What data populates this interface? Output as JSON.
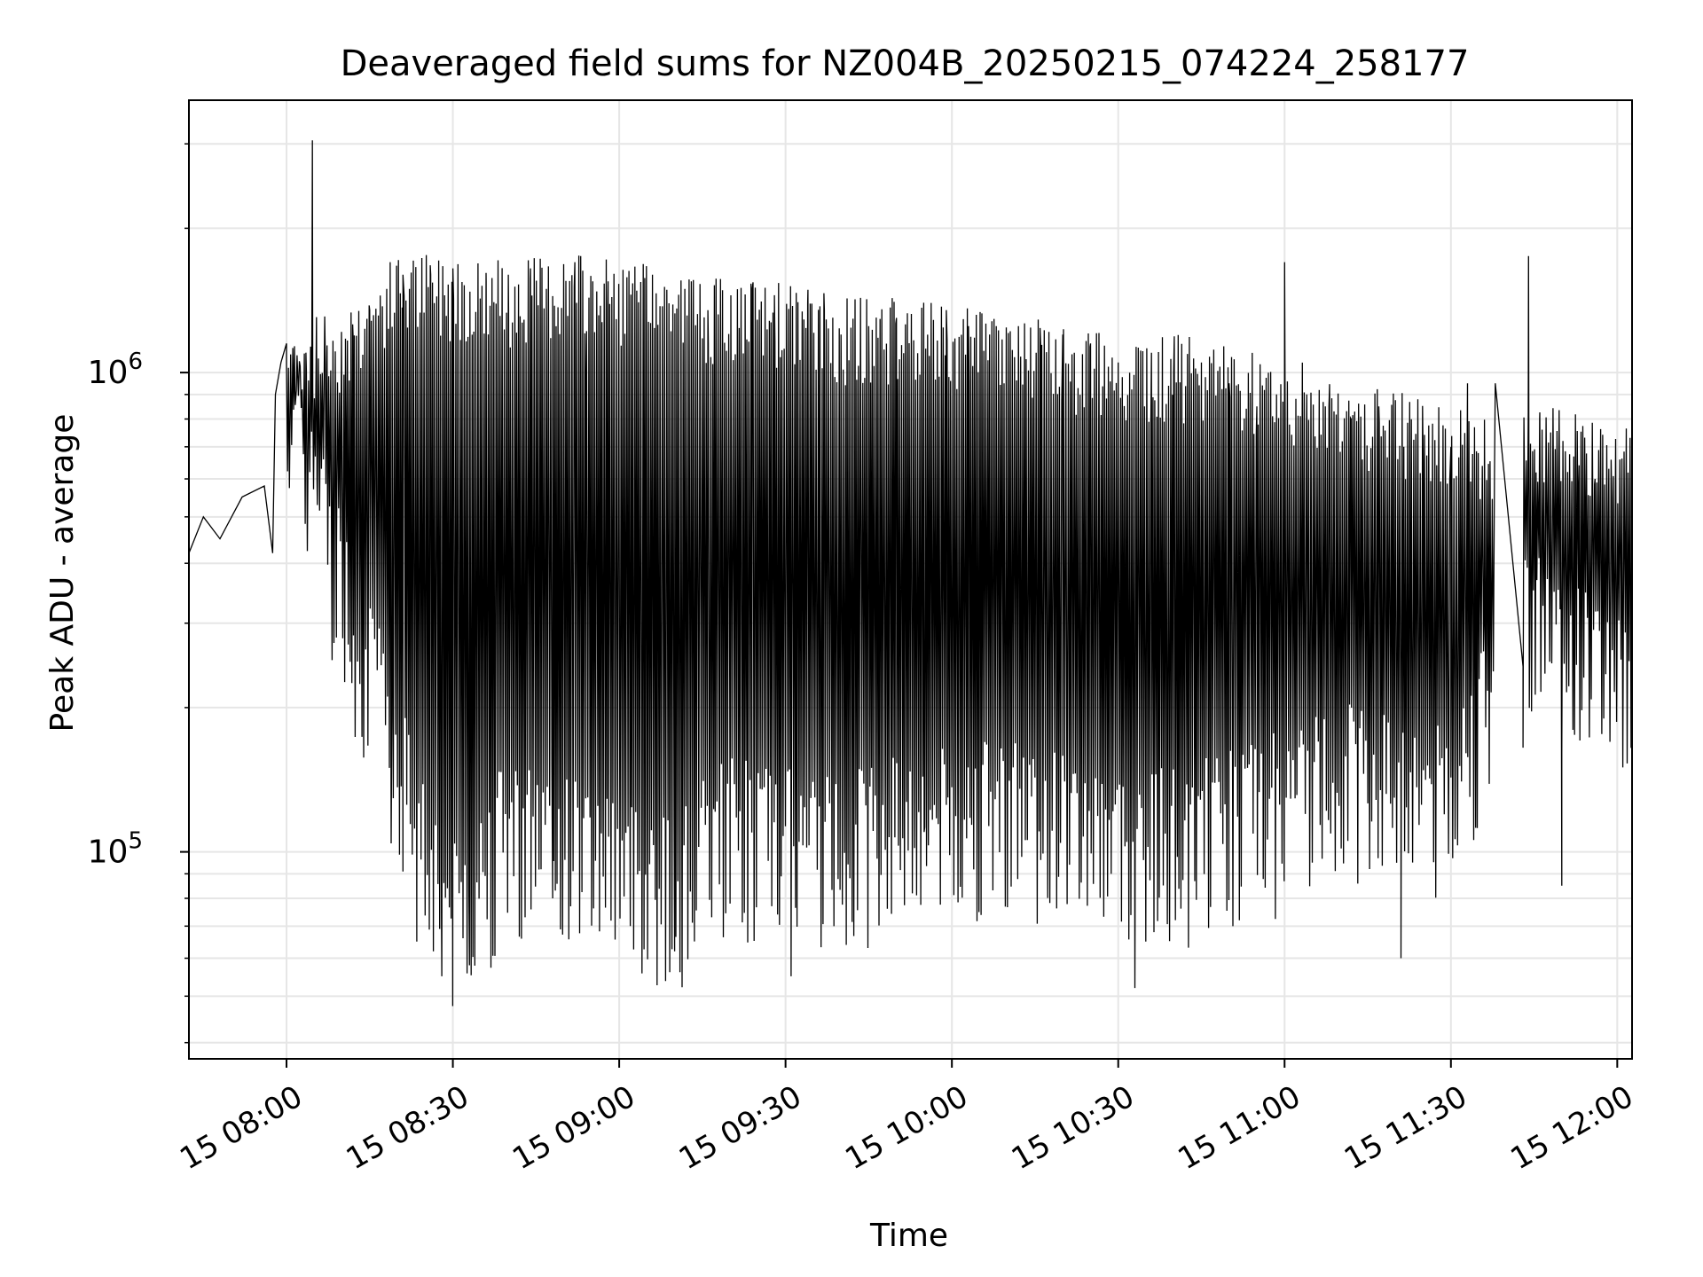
{
  "chart_data": {
    "type": "line",
    "title": "Deaveraged field sums for NZ004B_20250215_074224_258177",
    "xlabel": "Time",
    "ylabel": "Peak ADU - average",
    "yscale": "log",
    "grid": true,
    "legend": "none",
    "line_color": "#000000",
    "xlim": [
      "2025-02-15 07:42:24",
      "2025-02-15 12:02:40"
    ],
    "ylim": [
      37000,
      3700000
    ],
    "x_ticks": [
      {
        "t": "2025-02-15 08:00",
        "label": "15 08:00"
      },
      {
        "t": "2025-02-15 08:30",
        "label": "15 08:30"
      },
      {
        "t": "2025-02-15 09:00",
        "label": "15 09:00"
      },
      {
        "t": "2025-02-15 09:30",
        "label": "15 09:30"
      },
      {
        "t": "2025-02-15 10:00",
        "label": "15 10:00"
      },
      {
        "t": "2025-02-15 10:30",
        "label": "15 10:30"
      },
      {
        "t": "2025-02-15 11:00",
        "label": "15 11:00"
      },
      {
        "t": "2025-02-15 11:30",
        "label": "15 11:30"
      },
      {
        "t": "2025-02-15 12:00",
        "label": "15 12:00"
      }
    ],
    "y_ticks": [
      {
        "value": 100000,
        "base": "10",
        "exp": "5"
      },
      {
        "value": 1000000,
        "base": "10",
        "exp": "6"
      }
    ],
    "series": [
      {
        "x": [
          "2025-02-15 07:42:24",
          "2025-02-15 07:45:00",
          "2025-02-15 07:48:00",
          "2025-02-15 07:52:00",
          "2025-02-15 07:56:00",
          "2025-02-15 07:57:30",
          "2025-02-15 07:58:00",
          "2025-02-15 07:59:00",
          "2025-02-15 08:00:00",
          "2025-02-15 08:01:30",
          "2025-02-15 08:03:30",
          "2025-02-15 08:04:40",
          "2025-02-15 08:05:30",
          "2025-02-15 08:07:00",
          "2025-02-15 08:09:00",
          "2025-02-15 08:12:00",
          "2025-02-15 08:15:00",
          "2025-02-15 08:19:00",
          "2025-02-15 08:21:00",
          "2025-02-15 08:23:30",
          "2025-02-15 08:26:00",
          "2025-02-15 08:28:00",
          "2025-02-15 08:30:00",
          "2025-02-15 08:33:00",
          "2025-02-15 08:36:00",
          "2025-02-15 08:40:00",
          "2025-02-15 08:44:00",
          "2025-02-15 08:48:00",
          "2025-02-15 08:52:00",
          "2025-02-15 08:54:00",
          "2025-02-15 08:58:00",
          "2025-02-15 09:02:00",
          "2025-02-15 09:06:00",
          "2025-02-15 09:10:00",
          "2025-02-15 09:13:00",
          "2025-02-15 09:16:00",
          "2025-02-15 09:20:00",
          "2025-02-15 09:24:00",
          "2025-02-15 09:28:00",
          "2025-02-15 09:31:00",
          "2025-02-15 09:34:00",
          "2025-02-15 09:37:00",
          "2025-02-15 09:40:00",
          "2025-02-15 09:45:00",
          "2025-02-15 09:50:00",
          "2025-02-15 09:55:00",
          "2025-02-15 09:59:00",
          "2025-02-15 10:03:00",
          "2025-02-15 10:08:00",
          "2025-02-15 10:12:00",
          "2025-02-15 10:16:00",
          "2025-02-15 10:20:00",
          "2025-02-15 10:25:00",
          "2025-02-15 10:30:00",
          "2025-02-15 10:33:00",
          "2025-02-15 10:36:00",
          "2025-02-15 10:40:00",
          "2025-02-15 10:45:00",
          "2025-02-15 10:50:00",
          "2025-02-15 10:55:00",
          "2025-02-15 11:00:00",
          "2025-02-15 11:04:00",
          "2025-02-15 11:08:00",
          "2025-02-15 11:12:00",
          "2025-02-15 11:17:00",
          "2025-02-15 11:21:00",
          "2025-02-15 11:25:00",
          "2025-02-15 11:30:00",
          "2025-02-15 11:33:00",
          "2025-02-15 11:36:00",
          "2025-02-15 11:38:00",
          "2025-02-15 11:43:00",
          "2025-02-15 11:44:00",
          "2025-02-15 11:46:00",
          "2025-02-15 11:48:00",
          "2025-02-15 11:50:00",
          "2025-02-15 11:53:00",
          "2025-02-15 11:56:00",
          "2025-02-15 11:59:00",
          "2025-02-15 12:01:00",
          "2025-02-15 12:02:40"
        ],
        "y": [
          420000,
          500000,
          450000,
          550000,
          580000,
          420000,
          900000,
          1050000,
          1150000,
          950000,
          1100000,
          3050000,
          600000,
          1050000,
          280000,
          1200000,
          1350000,
          190000,
          1600000,
          65000,
          1600000,
          55000,
          1650000,
          58000,
          1550000,
          1600000,
          1650000,
          80000,
          1700000,
          950000,
          1550000,
          70000,
          1600000,
          62000,
          1550000,
          1350000,
          78000,
          1500000,
          1450000,
          55000,
          1400000,
          1350000,
          1200000,
          1250000,
          1300000,
          110000,
          1350000,
          1250000,
          1250000,
          1250000,
          1150000,
          1200000,
          1150000,
          1050000,
          52000,
          1100000,
          1000000,
          1050000,
          950000,
          850000,
          1700000,
          900000,
          850000,
          800000,
          850000,
          60000,
          650000,
          700000,
          950000,
          300000,
          950000,
          165000,
          1750000,
          800000,
          750000,
          85000,
          550000,
          600000,
          550000,
          150000,
          700000
        ]
      }
    ],
    "envelope": {
      "x": [
        "2025-02-15 08:00:00",
        "2025-02-15 08:10:00",
        "2025-02-15 08:20:00",
        "2025-02-15 08:30:00",
        "2025-02-15 08:40:00",
        "2025-02-15 08:50:00",
        "2025-02-15 09:00:00",
        "2025-02-15 09:10:00",
        "2025-02-15 09:20:00",
        "2025-02-15 09:30:00",
        "2025-02-15 09:40:00",
        "2025-02-15 09:50:00",
        "2025-02-15 10:00:00",
        "2025-02-15 10:10:00",
        "2025-02-15 10:20:00",
        "2025-02-15 10:30:00",
        "2025-02-15 10:40:00",
        "2025-02-15 10:50:00",
        "2025-02-15 11:00:00",
        "2025-02-15 11:10:00",
        "2025-02-15 11:20:00",
        "2025-02-15 11:30:00",
        "2025-02-15 11:38:00",
        "2025-02-15 11:44:00",
        "2025-02-15 11:50:00",
        "2025-02-15 12:00:00",
        "2025-02-15 12:02:40"
      ],
      "high": [
        1100000,
        1200000,
        1550000,
        1550000,
        1500000,
        1550000,
        1500000,
        1450000,
        1350000,
        1350000,
        1250000,
        1250000,
        1200000,
        1150000,
        1100000,
        1050000,
        1050000,
        1000000,
        950000,
        850000,
        800000,
        750000,
        700000,
        800000,
        750000,
        700000,
        700000
      ],
      "low": [
        900000,
        350000,
        150000,
        70000,
        110000,
        100000,
        95000,
        80000,
        110000,
        100000,
        100000,
        110000,
        110000,
        120000,
        110000,
        100000,
        100000,
        110000,
        120000,
        140000,
        130000,
        130000,
        200000,
        300000,
        250000,
        220000,
        200000
      ]
    }
  }
}
